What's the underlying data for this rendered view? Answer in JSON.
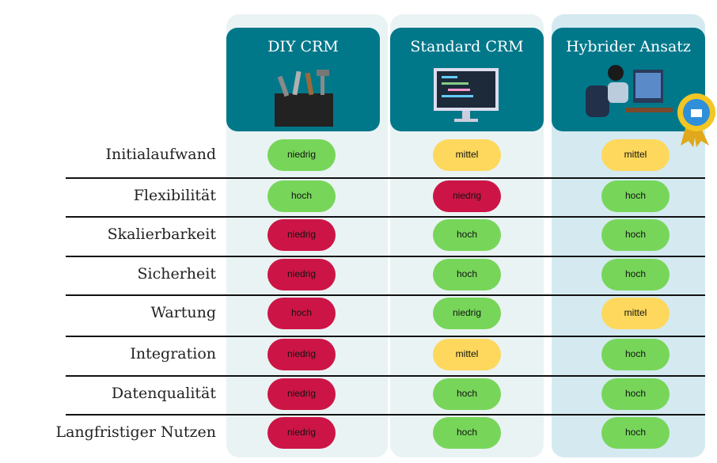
{
  "columns": [
    "DIY CRM",
    "Standard CRM",
    "Hybrider Ansatz"
  ],
  "rows": [
    {
      "label": "Initialaufwand",
      "cells": [
        {
          "text": "niedrig",
          "color": "#77d65a"
        },
        {
          "text": "mittel",
          "color": "#fdd85d"
        },
        {
          "text": "mittel",
          "color": "#fdd85d"
        }
      ]
    },
    {
      "label": "Flexibilität",
      "cells": [
        {
          "text": "hoch",
          "color": "#77d65a"
        },
        {
          "text": "niedrig",
          "color": "#cc1546"
        },
        {
          "text": "hoch",
          "color": "#77d65a"
        }
      ]
    },
    {
      "label": "Skalierbarkeit",
      "cells": [
        {
          "text": "niedrig",
          "color": "#cc1546"
        },
        {
          "text": "hoch",
          "color": "#77d65a"
        },
        {
          "text": "hoch",
          "color": "#77d65a"
        }
      ]
    },
    {
      "label": "Sicherheit",
      "cells": [
        {
          "text": "niedrig",
          "color": "#cc1546"
        },
        {
          "text": "hoch",
          "color": "#77d65a"
        },
        {
          "text": "hoch",
          "color": "#77d65a"
        }
      ]
    },
    {
      "label": "Wartung",
      "cells": [
        {
          "text": "hoch",
          "color": "#cc1546"
        },
        {
          "text": "niedrig",
          "color": "#77d65a"
        },
        {
          "text": "mittel",
          "color": "#fdd85d"
        }
      ]
    },
    {
      "label": "Integration",
      "cells": [
        {
          "text": "niedrig",
          "color": "#cc1546"
        },
        {
          "text": "mittel",
          "color": "#fdd85d"
        },
        {
          "text": "hoch",
          "color": "#77d65a"
        }
      ]
    },
    {
      "label": "Datenqualität",
      "cells": [
        {
          "text": "niedrig",
          "color": "#cc1546"
        },
        {
          "text": "hoch",
          "color": "#77d65a"
        },
        {
          "text": "hoch",
          "color": "#77d65a"
        }
      ]
    },
    {
      "label": "Langfristiger Nutzen",
      "cells": [
        {
          "text": "niedrig",
          "color": "#cc1546"
        },
        {
          "text": "hoch",
          "color": "#77d65a"
        },
        {
          "text": "hoch",
          "color": "#77d65a"
        }
      ]
    }
  ]
}
